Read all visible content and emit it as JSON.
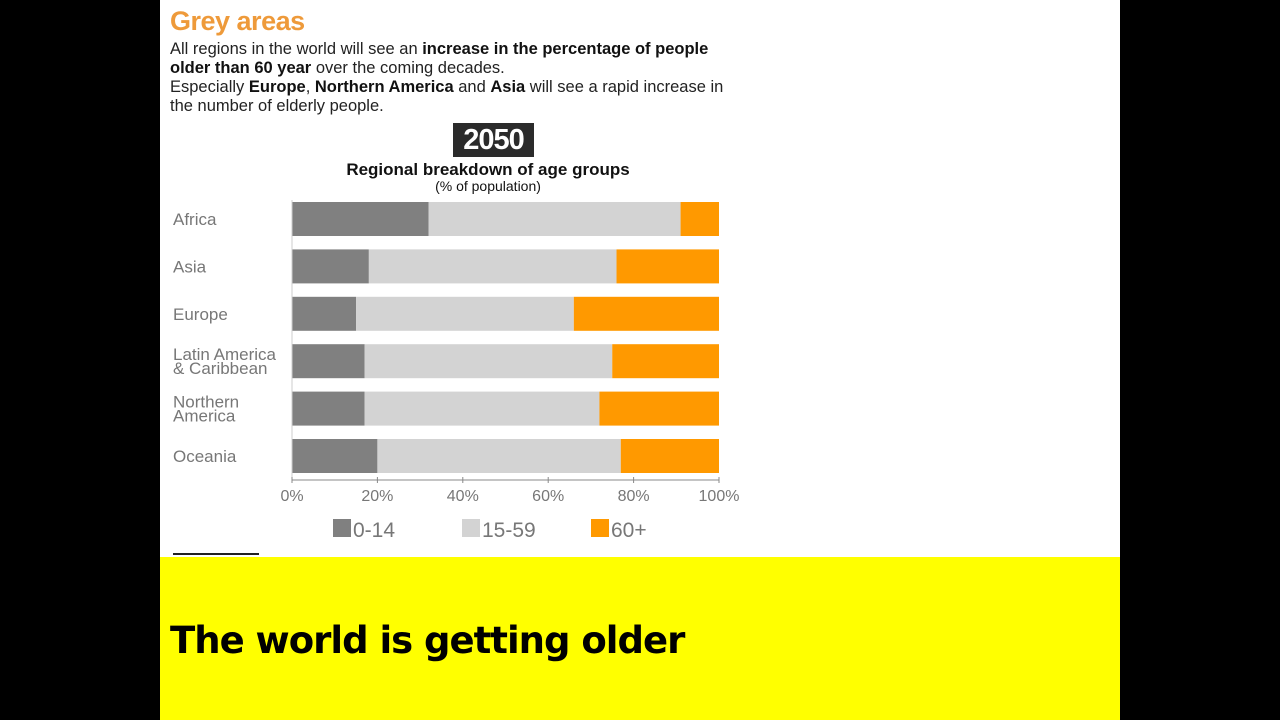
{
  "heading": "Grey areas",
  "intro": {
    "p1_a": "All regions in the world will see an ",
    "p1_b": "increase in the percentage of people older than 60 year",
    "p1_c": " over the coming decades.",
    "p2_a": "Especially ",
    "p2_b": "Europe",
    "p2_c": ", ",
    "p2_d": "Northern America",
    "p2_e": " and ",
    "p2_f": "Asia",
    "p2_g": " will see a rapid increase in the number of elderly people."
  },
  "year_badge": "2050",
  "caption": "The world is getting older",
  "chart_data": {
    "type": "bar",
    "stacked": true,
    "orientation": "horizontal",
    "title": "Regional breakdown of age groups",
    "subtitle": "(% of population)",
    "categories": [
      "Africa",
      "Asia",
      "Europe",
      "Latin America & Caribbean",
      "Northern America",
      "Oceania"
    ],
    "category_lines": [
      [
        "Africa"
      ],
      [
        "Asia"
      ],
      [
        "Europe"
      ],
      [
        "Latin America",
        "& Caribbean"
      ],
      [
        "Northern",
        "America"
      ],
      [
        "Oceania"
      ]
    ],
    "series": [
      {
        "name": "0-14",
        "color": "#808080",
        "values": [
          32,
          18,
          15,
          17,
          17,
          20
        ]
      },
      {
        "name": "15-59",
        "color": "#d3d3d3",
        "values": [
          59,
          58,
          51,
          58,
          55,
          57
        ]
      },
      {
        "name": "60+",
        "color": "#ff9900",
        "values": [
          9,
          24,
          34,
          25,
          28,
          23
        ]
      }
    ],
    "xlim": [
      0,
      100
    ],
    "xticks": [
      "0%",
      "20%",
      "40%",
      "60%",
      "80%",
      "100%"
    ],
    "legend": "bottom"
  }
}
